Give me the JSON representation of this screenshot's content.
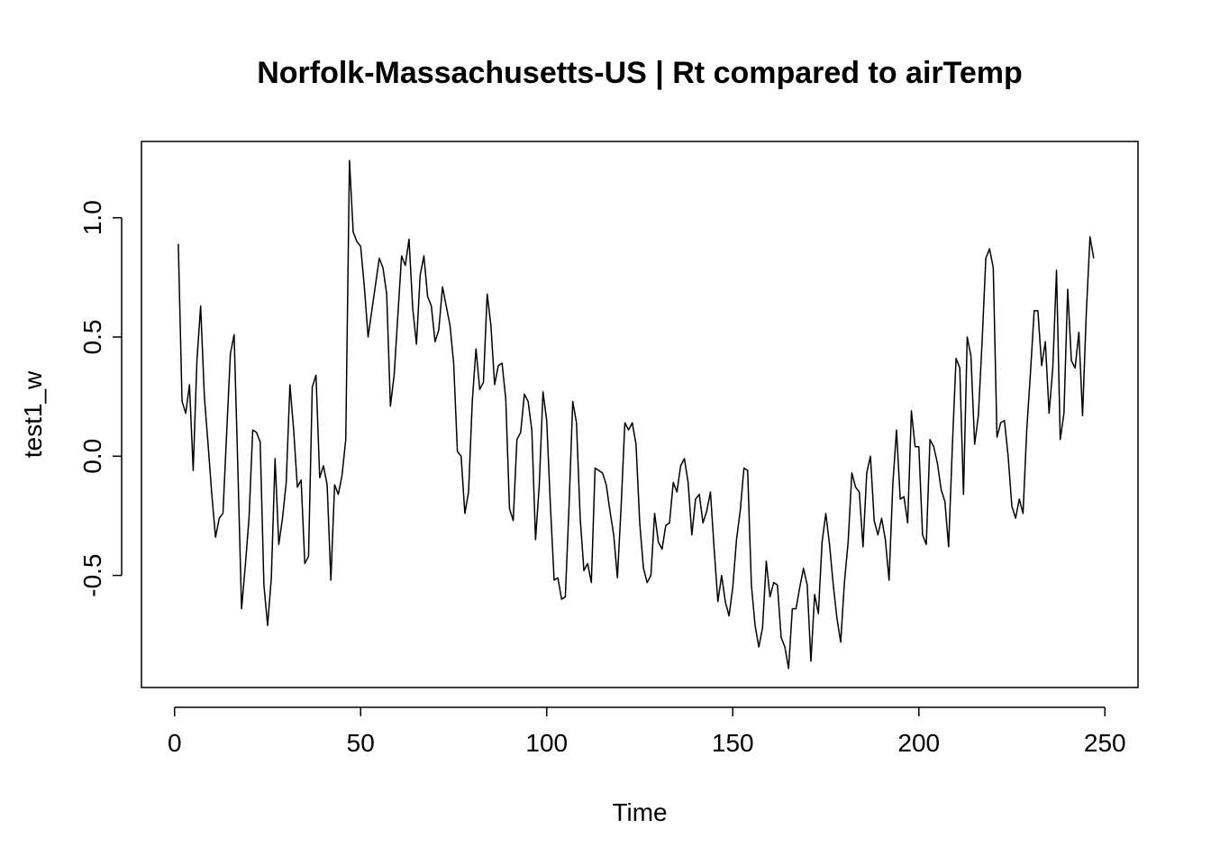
{
  "chart_data": {
    "type": "line",
    "title": "Norfolk-Massachusetts-US | Rt compared to airTemp",
    "xlabel": "Time",
    "ylabel": "test1_w",
    "xlim": [
      -8.9,
      258.9
    ],
    "ylim": [
      -0.97,
      1.32
    ],
    "xticks": [
      0,
      50,
      100,
      150,
      200,
      250
    ],
    "xtick_labels": [
      "0",
      "50",
      "100",
      "150",
      "200",
      "250"
    ],
    "yticks": [
      -0.5,
      0.0,
      0.5,
      1.0
    ],
    "ytick_labels": [
      "-0.5",
      "0.0",
      "0.5",
      "1.0"
    ],
    "series": [
      {
        "name": "test1_w",
        "x_start": 1,
        "x_step": 1,
        "values": [
          0.89,
          0.23,
          0.18,
          0.3,
          -0.06,
          0.4,
          0.63,
          0.25,
          0.05,
          -0.16,
          -0.34,
          -0.26,
          -0.24,
          0.1,
          0.43,
          0.51,
          -0.05,
          -0.64,
          -0.46,
          -0.26,
          0.11,
          0.1,
          0.06,
          -0.54,
          -0.71,
          -0.51,
          -0.01,
          -0.37,
          -0.26,
          -0.11,
          0.3,
          0.11,
          -0.13,
          -0.1,
          -0.45,
          -0.42,
          0.29,
          0.34,
          -0.09,
          -0.04,
          -0.12,
          -0.52,
          -0.12,
          -0.16,
          -0.08,
          0.07,
          1.24,
          0.94,
          0.9,
          0.88,
          0.71,
          0.5,
          0.61,
          0.72,
          0.83,
          0.79,
          0.68,
          0.21,
          0.34,
          0.59,
          0.84,
          0.8,
          0.91,
          0.62,
          0.47,
          0.76,
          0.84,
          0.67,
          0.63,
          0.48,
          0.53,
          0.71,
          0.63,
          0.55,
          0.39,
          0.02,
          0.0,
          -0.24,
          -0.15,
          0.23,
          0.45,
          0.28,
          0.31,
          0.68,
          0.55,
          0.3,
          0.38,
          0.39,
          0.24,
          -0.22,
          -0.27,
          0.07,
          0.1,
          0.26,
          0.23,
          0.11,
          -0.35,
          -0.12,
          0.27,
          0.15,
          -0.21,
          -0.52,
          -0.51,
          -0.6,
          -0.59,
          -0.21,
          0.23,
          0.14,
          -0.26,
          -0.48,
          -0.45,
          -0.53,
          -0.05,
          -0.06,
          -0.07,
          -0.12,
          -0.23,
          -0.33,
          -0.51,
          -0.21,
          0.14,
          0.11,
          0.14,
          0.05,
          -0.28,
          -0.47,
          -0.53,
          -0.5,
          -0.24,
          -0.36,
          -0.39,
          -0.29,
          -0.28,
          -0.11,
          -0.15,
          -0.04,
          -0.01,
          -0.11,
          -0.33,
          -0.18,
          -0.16,
          -0.28,
          -0.23,
          -0.15,
          -0.39,
          -0.61,
          -0.5,
          -0.61,
          -0.67,
          -0.55,
          -0.35,
          -0.23,
          -0.05,
          -0.06,
          -0.54,
          -0.71,
          -0.8,
          -0.72,
          -0.44,
          -0.59,
          -0.53,
          -0.54,
          -0.76,
          -0.8,
          -0.89,
          -0.64,
          -0.64,
          -0.55,
          -0.47,
          -0.54,
          -0.86,
          -0.58,
          -0.66,
          -0.36,
          -0.24,
          -0.37,
          -0.54,
          -0.68,
          -0.78,
          -0.53,
          -0.36,
          -0.07,
          -0.13,
          -0.15,
          -0.38,
          -0.07,
          0.0,
          -0.27,
          -0.33,
          -0.26,
          -0.35,
          -0.52,
          -0.12,
          0.11,
          -0.18,
          -0.17,
          -0.28,
          0.19,
          0.04,
          0.04,
          -0.33,
          -0.37,
          0.07,
          0.04,
          -0.03,
          -0.14,
          -0.19,
          -0.38,
          0.04,
          0.41,
          0.37,
          -0.16,
          0.5,
          0.42,
          0.05,
          0.17,
          0.48,
          0.83,
          0.87,
          0.79,
          0.08,
          0.14,
          0.15,
          0.0,
          -0.21,
          -0.26,
          -0.18,
          -0.24,
          0.11,
          0.35,
          0.61,
          0.61,
          0.38,
          0.48,
          0.18,
          0.37,
          0.78,
          0.07,
          0.18,
          0.7,
          0.4,
          0.37,
          0.52,
          0.17,
          0.6,
          0.92,
          0.83
        ]
      }
    ]
  }
}
